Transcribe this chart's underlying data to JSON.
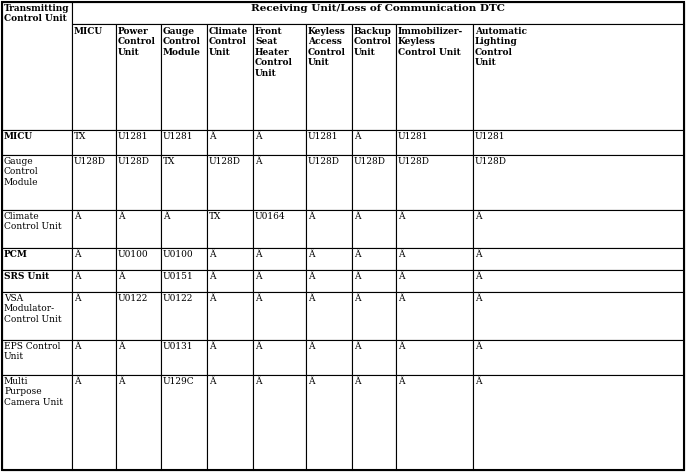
{
  "title": "Receiving Unit/Loss of Communication DTC",
  "left_header": "Transmitting\nControl Unit",
  "col_headers": [
    "MICU",
    "Power\nControl\nUnit",
    "Gauge\nControl\nModule",
    "Climate\nControl\nUnit",
    "Front\nSeat\nHeater\nControl\nUnit",
    "Keyless\nAccess\nControl\nUnit",
    "Backup\nControl\nUnit",
    "Immobilizer-\nKeyless\nControl Unit",
    "Automatic\nLighting\nControl\nUnit"
  ],
  "row_headers": [
    "MICU",
    "Gauge\nControl\nModule",
    "Climate\nControl Unit",
    "PCM",
    "SRS Unit",
    "VSA\nModulator-\nControl Unit",
    "EPS Control\nUnit",
    "Multi\nPurpose\nCamera Unit"
  ],
  "cell_data": [
    [
      "TX",
      "U1281",
      "U1281",
      "Â",
      "Â",
      "U1281",
      "Â",
      "U1281",
      "U1281"
    ],
    [
      "U128D",
      "U128D",
      "TX",
      "U128D",
      "Â",
      "U128D",
      "U128D",
      "U128D",
      "U128D"
    ],
    [
      "Â",
      "Â",
      "Â",
      "TX",
      "U0164",
      "Â",
      "Â",
      "Â",
      "Â"
    ],
    [
      "Â",
      "U0100",
      "U0100",
      "Â",
      "Â",
      "Â",
      "Â",
      "Â",
      "Â"
    ],
    [
      "Â",
      "Â",
      "U0151",
      "Â",
      "Â",
      "Â",
      "Â",
      "Â",
      "Â"
    ],
    [
      "Â",
      "U0122",
      "U0122",
      "Â",
      "Â",
      "Â",
      "Â",
      "Â",
      "Â"
    ],
    [
      "Â",
      "Â",
      "U0131",
      "Â",
      "Â",
      "Â",
      "Â",
      "Â",
      "Â"
    ],
    [
      "Â",
      "Â",
      "U129C",
      "Â",
      "Â",
      "Â",
      "Â",
      "Â",
      "Â"
    ]
  ],
  "bold_row_indices": [
    0,
    3,
    4
  ],
  "border_color": "#000000",
  "background_color": "#ffffff",
  "font_size": 6.5
}
